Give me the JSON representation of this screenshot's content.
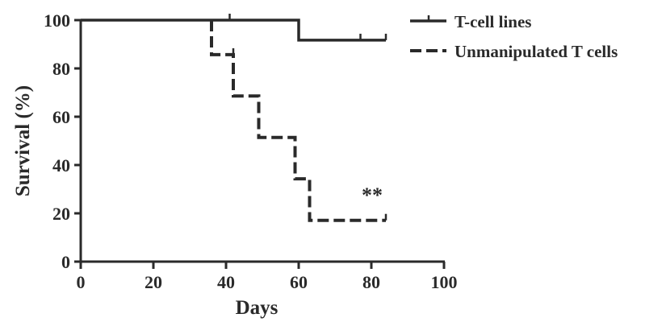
{
  "chart_data": {
    "type": "line",
    "subtype": "kaplan-meier step",
    "title": "",
    "xlabel": "Days",
    "ylabel": "Survival (%)",
    "xlim": [
      0,
      100
    ],
    "ylim": [
      0,
      100
    ],
    "xticks": [
      "0",
      "20",
      "40",
      "60",
      "80",
      "100"
    ],
    "yticks": [
      "0",
      "20",
      "40",
      "60",
      "80",
      "100"
    ],
    "grid": false,
    "legend_position": "top-right",
    "series": [
      {
        "name": "T-cell lines",
        "style": "solid",
        "color": "#2a2a2a",
        "steps": [
          [
            0,
            100
          ],
          [
            60,
            91.7
          ],
          [
            84,
            91.7
          ]
        ],
        "censored": [
          [
            41,
            100
          ],
          [
            77,
            91.7
          ],
          [
            84,
            91.7
          ]
        ]
      },
      {
        "name": "Unmanipulated T cells",
        "style": "dashed",
        "color": "#2a2a2a",
        "steps": [
          [
            36,
            100
          ],
          [
            36,
            85.7
          ],
          [
            42,
            68.6
          ],
          [
            49,
            51.4
          ],
          [
            59,
            34.3
          ],
          [
            63,
            17.1
          ],
          [
            84,
            17.1
          ]
        ],
        "censored": [
          [
            42,
            85.7
          ],
          [
            84,
            17.1
          ]
        ]
      }
    ],
    "annotations": [
      "**"
    ]
  }
}
